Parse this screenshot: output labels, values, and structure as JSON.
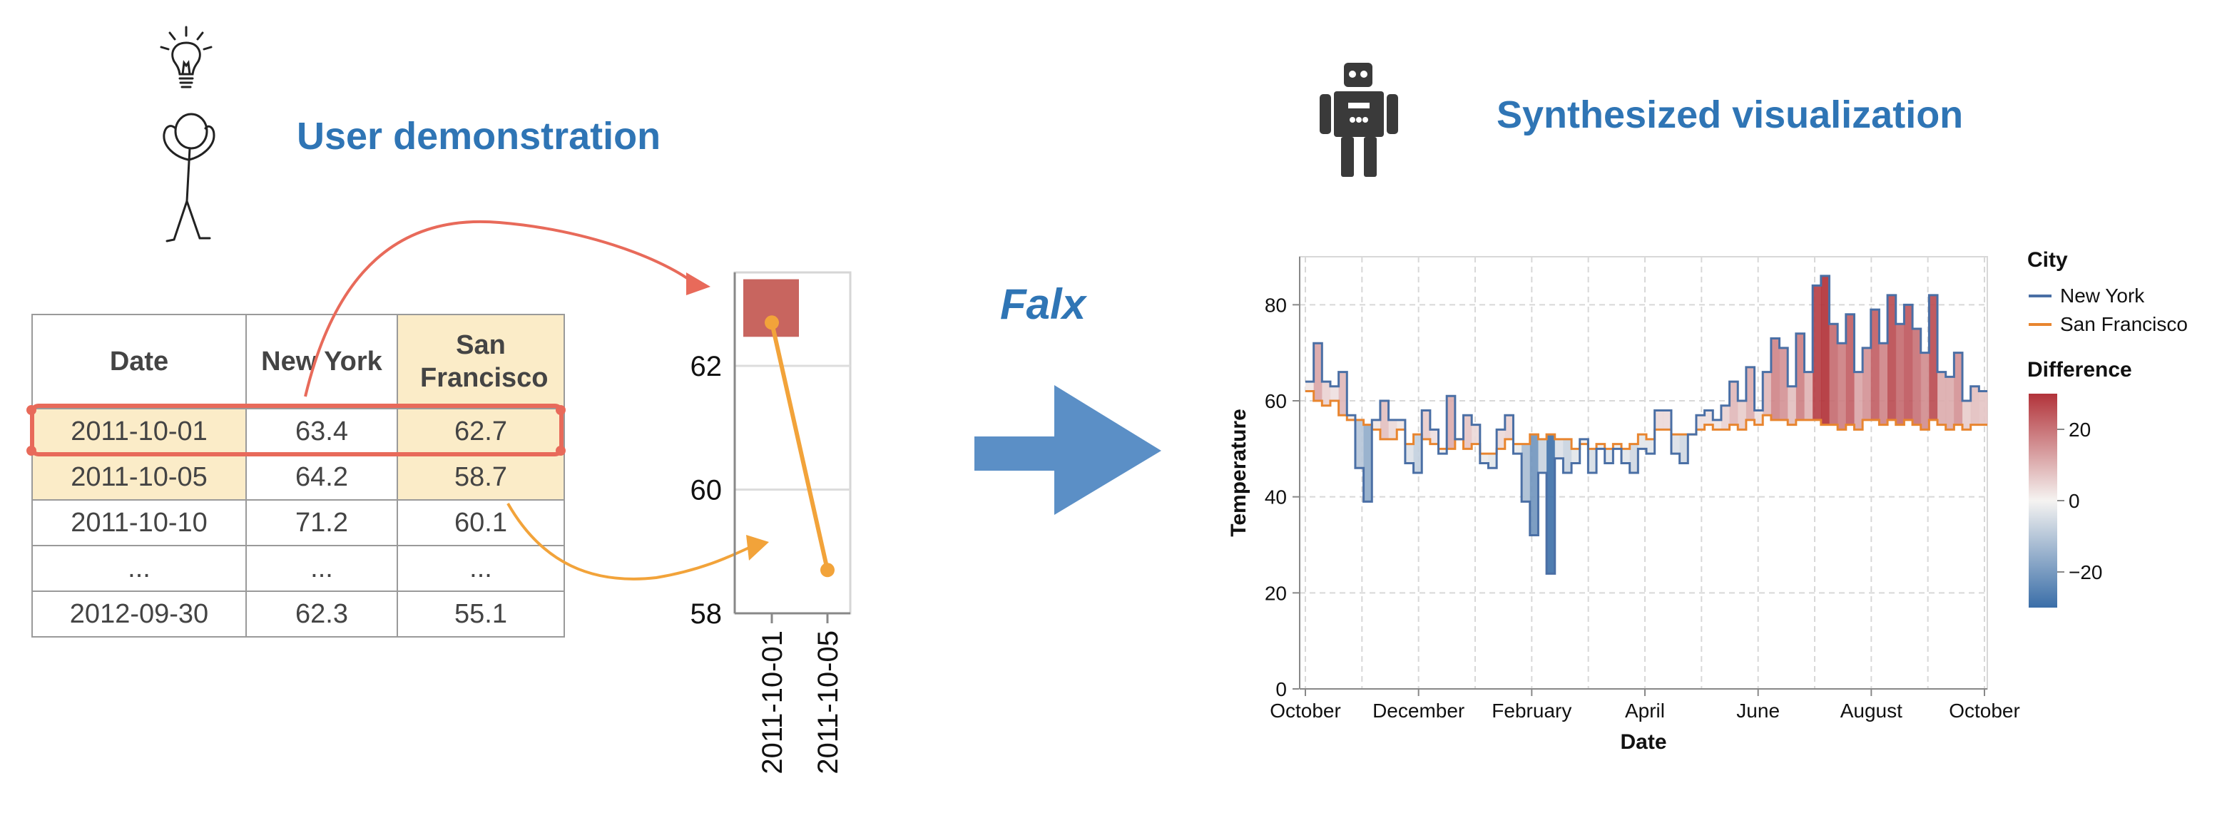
{
  "demo": {
    "heading": "User demonstration",
    "table": {
      "columns": [
        "Date",
        "New York",
        "San Francisco"
      ],
      "rows": [
        [
          "2011-10-01",
          "63.4",
          "62.7"
        ],
        [
          "2011-10-05",
          "64.2",
          "58.7"
        ],
        [
          "2011-10-10",
          "71.2",
          "60.1"
        ],
        [
          "...",
          "...",
          "..."
        ],
        [
          "2012-09-30",
          "62.3",
          "55.1"
        ]
      ]
    }
  },
  "arrow_label": "Falx",
  "synth": {
    "heading": "Synthesized visualization"
  },
  "icons": [
    "lightbulb-icon",
    "stick-figure-icon",
    "robot-icon",
    "big-arrow-icon"
  ],
  "colors": {
    "accent": "#2f75b5",
    "demo_highlight": "#e86a5a",
    "demo_orange": "#f2a33a",
    "table_highlight": "#fbecc8",
    "new_york": "#4a6fa5",
    "san_francisco": "#e8852f",
    "diff_high": "#b2333a",
    "diff_low": "#3a6ea8"
  },
  "chart_data": [
    {
      "type": "line",
      "x": [
        "2011-10-01",
        "2011-10-05"
      ],
      "ylim": [
        58,
        63.4
      ],
      "yticks": [
        58,
        60,
        62
      ],
      "series": [
        {
          "values": [
            62.7,
            58.7
          ]
        }
      ],
      "bar": {
        "x": "2011-10-01",
        "y0": 62.7,
        "y1": 63.4
      }
    },
    {
      "type": "area",
      "xlabel": "Date",
      "ylabel": "Temperature",
      "ylim": [
        0,
        90
      ],
      "yticks": [
        0,
        20,
        40,
        60,
        80
      ],
      "xticks": [
        "October",
        "December",
        "February",
        "April",
        "June",
        "August",
        "October"
      ],
      "legend": {
        "color_title": "City",
        "entries": [
          "New York",
          "San Francisco"
        ],
        "gradient_title": "Difference",
        "gradient_ticks": [
          20,
          0,
          -20
        ],
        "placement": "right"
      },
      "grid": true,
      "series": [
        {
          "name": "New York",
          "values": [
            64,
            72,
            64,
            63,
            66,
            57,
            46,
            39,
            56,
            60,
            56,
            56,
            47,
            45,
            58,
            54,
            49,
            61,
            52,
            57,
            55,
            47,
            46,
            54,
            57,
            49,
            39,
            32,
            45,
            24,
            48,
            45,
            47,
            52,
            45,
            50,
            47,
            50,
            47,
            45,
            50,
            49,
            58,
            58,
            49,
            47,
            53,
            57,
            58,
            56,
            59,
            64,
            60,
            67,
            58,
            66,
            73,
            71,
            63,
            74,
            66,
            84,
            86,
            76,
            72,
            78,
            66,
            71,
            79,
            72,
            82,
            76,
            80,
            75,
            70,
            82,
            66,
            65,
            70,
            60,
            63,
            62
          ]
        },
        {
          "name": "San Francisco",
          "values": [
            62,
            60,
            59,
            60,
            57,
            56,
            56,
            55,
            54,
            52,
            52,
            54,
            51,
            53,
            52,
            51,
            50,
            50,
            52,
            50,
            51,
            49,
            49,
            50,
            52,
            51,
            51,
            53,
            52,
            53,
            52,
            52,
            50,
            51,
            50,
            51,
            50,
            51,
            50,
            51,
            53,
            52,
            54,
            54,
            53,
            53,
            53,
            54,
            55,
            54,
            54,
            55,
            54,
            56,
            55,
            57,
            56,
            56,
            55,
            56,
            56,
            56,
            55,
            55,
            54,
            55,
            54,
            56,
            56,
            55,
            56,
            55,
            56,
            55,
            54,
            56,
            55,
            54,
            55,
            54,
            55,
            55
          ]
        }
      ]
    }
  ]
}
